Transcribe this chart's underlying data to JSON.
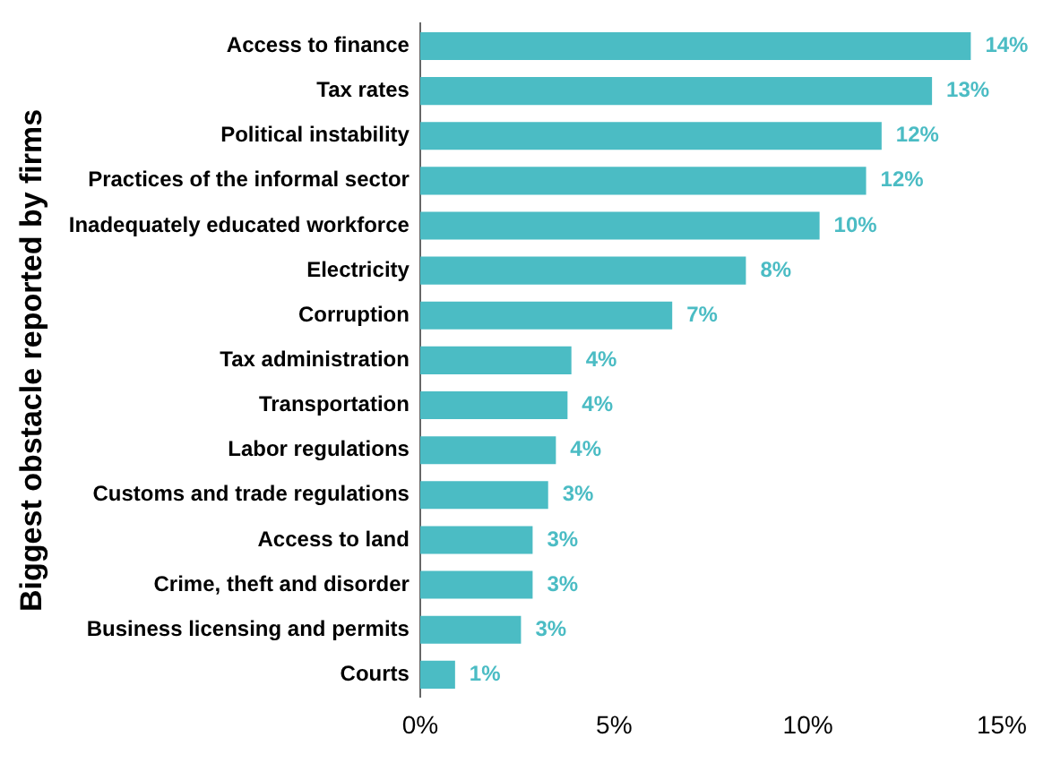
{
  "chart_data": {
    "type": "bar",
    "orientation": "horizontal",
    "ylabel": "Biggest obstacle reported by firms",
    "categories": [
      "Access to finance",
      "Tax rates",
      "Political instability",
      "Practices of the informal sector",
      "Inadequately educated workforce",
      "Electricity",
      "Corruption",
      "Tax administration",
      "Transportation",
      "Labor regulations",
      "Customs and trade regulations",
      "Access to land",
      "Crime, theft and disorder",
      "Business licensing and permits",
      "Courts"
    ],
    "values": [
      14.2,
      13.2,
      11.9,
      11.5,
      10.3,
      8.4,
      6.5,
      3.9,
      3.8,
      3.5,
      3.3,
      2.9,
      2.9,
      2.6,
      0.9
    ],
    "value_labels": [
      "14%",
      "13%",
      "12%",
      "12%",
      "10%",
      "8%",
      "7%",
      "4%",
      "4%",
      "4%",
      "3%",
      "3%",
      "3%",
      "3%",
      "1%"
    ],
    "color": "#4bbcc4",
    "xlim": [
      0,
      15
    ],
    "xticks": [
      {
        "value": 0,
        "label": "0%"
      },
      {
        "value": 5,
        "label": "5%"
      },
      {
        "value": 10,
        "label": "10%"
      },
      {
        "value": 15,
        "label": "15%"
      }
    ],
    "grid": false,
    "legend": false
  }
}
